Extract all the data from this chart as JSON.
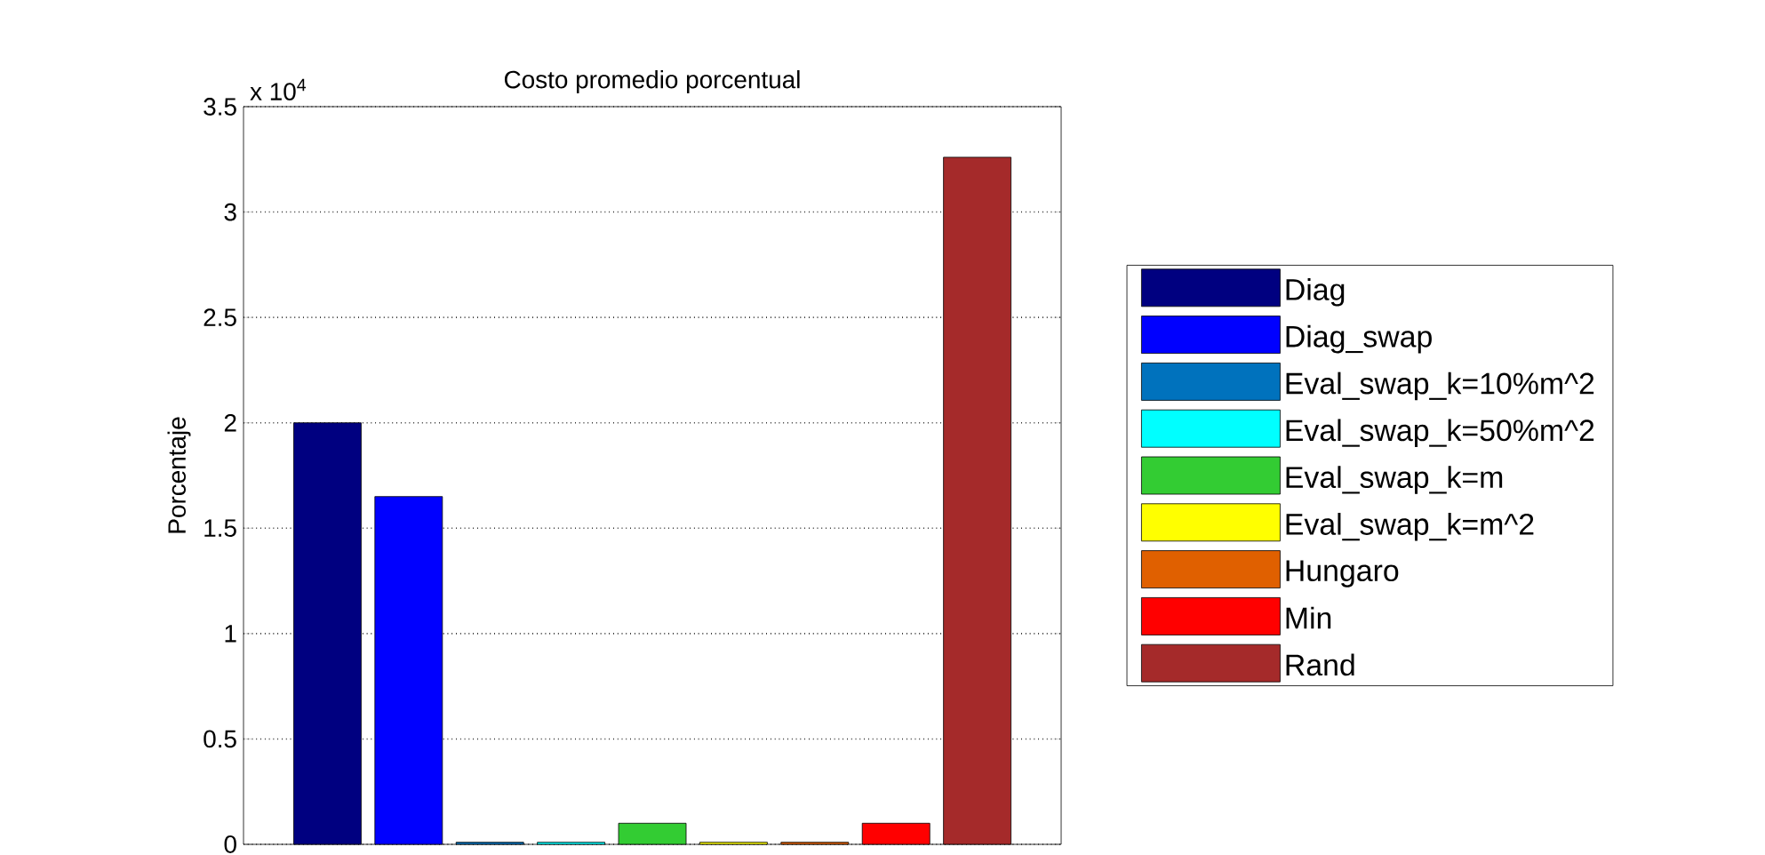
{
  "chart_data": {
    "type": "bar",
    "title": "Costo promedio porcentual",
    "ylabel": "Porcentaje",
    "annotations": [
      "x 10$^{4}$"
    ],
    "categories": [
      null
    ],
    "series": [
      {
        "name": "Diag",
        "color": "#000080",
        "values": [
          2.0
        ]
      },
      {
        "name": "Diag_swap",
        "color": "#0000ff",
        "values": [
          1.65
        ]
      },
      {
        "name": "Eval_swap_k=10%m^2",
        "color": "#0072bd",
        "values": [
          0.01
        ]
      },
      {
        "name": "Eval_swap_k=50%m^2",
        "color": "#00ffff",
        "values": [
          0.01
        ]
      },
      {
        "name": "Eval_swap_k=m",
        "color": "#33cc33",
        "values": [
          0.1
        ]
      },
      {
        "name": "Eval_swap_k=m^2",
        "color": "#ffff00",
        "values": [
          0.01
        ]
      },
      {
        "name": "Hungaro",
        "color": "#e06000",
        "values": [
          0.01
        ]
      },
      {
        "name": "Min",
        "color": "#ff0000",
        "values": [
          0.1
        ]
      },
      {
        "name": "Rand",
        "color": "#a52a2a",
        "values": [
          3.26
        ]
      }
    ],
    "ylim": [
      0,
      3.5
    ],
    "yticks": [
      0,
      0.5,
      1,
      1.5,
      2,
      2.5,
      3,
      3.5
    ],
    "grid": "y",
    "legend": "right",
    "tick_labels": "y"
  }
}
